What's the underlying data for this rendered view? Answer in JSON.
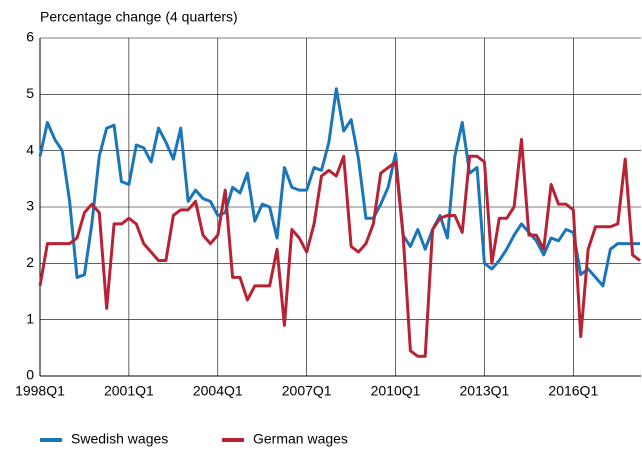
{
  "chart_data": {
    "type": "line",
    "subtitle": "Percentage change (4 quarters)",
    "categories": [
      "1998Q1",
      null,
      null,
      null,
      null,
      null,
      null,
      null,
      null,
      null,
      null,
      null,
      "2001Q1",
      null,
      null,
      null,
      null,
      null,
      null,
      null,
      null,
      null,
      null,
      null,
      "2004Q1",
      null,
      null,
      null,
      null,
      null,
      null,
      null,
      null,
      null,
      null,
      null,
      "2007Q1",
      null,
      null,
      null,
      null,
      null,
      null,
      null,
      null,
      null,
      null,
      null,
      "2010Q1",
      null,
      null,
      null,
      null,
      null,
      null,
      null,
      null,
      null,
      null,
      null,
      "2013Q1",
      null,
      null,
      null,
      null,
      null,
      null,
      null,
      null,
      null,
      null,
      null,
      "2016Q1",
      null,
      null,
      null,
      null,
      null,
      null,
      null,
      null,
      null
    ],
    "series": [
      {
        "name": "Swedish wages",
        "color": "#1b75bb",
        "values": [
          3.9,
          4.5,
          4.2,
          4.0,
          3.1,
          1.75,
          1.8,
          2.7,
          3.9,
          4.4,
          4.45,
          3.45,
          3.4,
          4.1,
          4.05,
          3.8,
          4.4,
          4.15,
          3.85,
          4.4,
          3.1,
          3.3,
          3.15,
          3.1,
          2.85,
          2.9,
          3.35,
          3.25,
          3.6,
          2.75,
          3.05,
          3.0,
          2.45,
          3.7,
          3.35,
          3.3,
          3.3,
          3.7,
          3.65,
          4.15,
          5.1,
          4.35,
          4.55,
          3.85,
          2.8,
          2.8,
          3.05,
          3.35,
          3.95,
          2.5,
          2.3,
          2.6,
          2.25,
          2.6,
          2.85,
          2.45,
          3.9,
          4.5,
          3.6,
          3.7,
          2.0,
          1.9,
          2.05,
          2.25,
          2.5,
          2.7,
          2.55,
          2.4,
          2.15,
          2.45,
          2.4,
          2.6,
          2.55,
          1.8,
          1.9,
          1.75,
          1.6,
          2.25,
          2.35,
          2.35,
          2.35,
          2.35
        ]
      },
      {
        "name": "German wages",
        "color": "#b72234",
        "values": [
          1.6,
          2.35,
          2.35,
          2.35,
          2.35,
          2.45,
          2.9,
          3.05,
          2.9,
          1.2,
          2.7,
          2.7,
          2.8,
          2.7,
          2.35,
          2.2,
          2.05,
          2.05,
          2.85,
          2.95,
          2.95,
          3.1,
          2.5,
          2.35,
          2.5,
          3.3,
          1.75,
          1.75,
          1.35,
          1.6,
          1.6,
          1.6,
          2.25,
          0.9,
          2.6,
          2.45,
          2.2,
          2.7,
          3.55,
          3.65,
          3.55,
          3.9,
          2.3,
          2.2,
          2.35,
          2.7,
          3.6,
          3.7,
          3.8,
          2.55,
          0.45,
          0.35,
          0.35,
          2.6,
          2.8,
          2.85,
          2.85,
          2.55,
          3.9,
          3.9,
          3.8,
          2.0,
          2.8,
          2.8,
          3.0,
          4.2,
          2.5,
          2.5,
          2.25,
          3.4,
          3.05,
          3.05,
          2.95,
          0.7,
          2.25,
          2.65,
          2.65,
          2.65,
          2.7,
          3.85,
          2.15,
          2.05
        ]
      }
    ],
    "ylim": [
      0,
      6
    ],
    "yticks": [
      0,
      1,
      2,
      3,
      4,
      5,
      6
    ],
    "grid": true,
    "legend": "bottom"
  }
}
